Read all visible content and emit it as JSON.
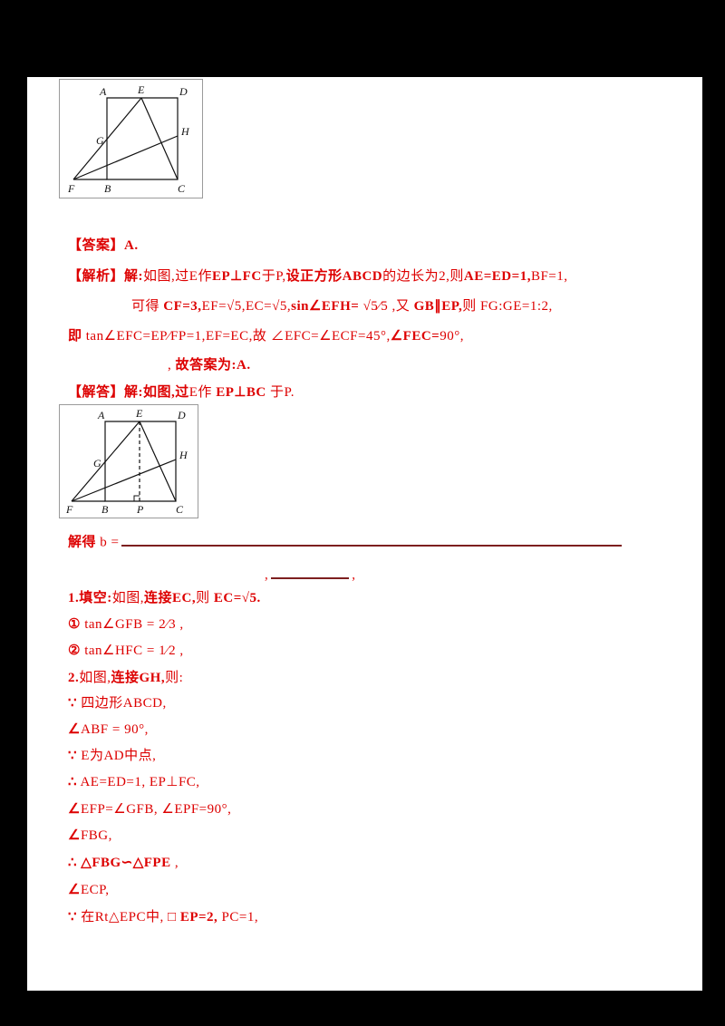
{
  "page": {
    "background": "#ffffff",
    "surround": "#000000"
  },
  "colors": {
    "text_red": "#dd0000",
    "rule_maroon": "#7d1f1f",
    "figure_line": "#111111"
  },
  "fig1": {
    "A": "A",
    "B": "B",
    "C": "C",
    "D": "D",
    "E": "E",
    "F": "F",
    "G": "G",
    "H": "H"
  },
  "fig2": {
    "A": "A",
    "B": "B",
    "C": "C",
    "D": "D",
    "E": "E",
    "F": "F",
    "G": "G",
    "H": "H",
    "P": "P"
  },
  "lines": {
    "answer": [
      {
        "t": "【答案】",
        "b": true
      },
      {
        "t": "A.",
        "b": true
      }
    ],
    "analysis1": [
      {
        "t": "【解析】解:",
        "b": true
      },
      {
        "t": "如图,过",
        "b": false
      },
      {
        "t": "E",
        "b": false
      },
      {
        "t": "作",
        "b": false
      },
      {
        "t": "EP⊥FC",
        "b": true
      },
      {
        "t": "于",
        "b": false
      },
      {
        "t": "P,",
        "b": false
      },
      {
        "t": "设正方形ABCD",
        "b": true
      },
      {
        "t": "的边长为2,则",
        "b": false
      },
      {
        "t": "AE=ED=1,",
        "b": true
      },
      {
        "t": "BF=1,",
        "b": false
      }
    ],
    "analysis2": [
      {
        "t": "可得 ",
        "b": false
      },
      {
        "t": "CF=3,",
        "b": true
      },
      {
        "t": "EF=√5,EC=√5,",
        "b": false
      },
      {
        "t": "sin∠EFH=",
        "b": true
      },
      {
        "t": " √5⁄5 ,又 ",
        "b": false
      },
      {
        "t": "GB∥EP,",
        "b": true
      },
      {
        "t": "则 ",
        "b": false
      },
      {
        "t": "FG:GE=1:2,",
        "b": false
      }
    ],
    "analysis3": [
      {
        "t": "即",
        "b": true
      },
      {
        "t": " tan∠EFC=",
        "b": false
      },
      {
        "t": "EP⁄FP",
        "b": false
      },
      {
        "t": "=1,",
        "b": false
      },
      {
        "t": "EF=EC,",
        "b": false
      },
      {
        "t": "故 ",
        "b": false
      },
      {
        "t": "∠EFC=∠ECF=45°,",
        "b": false
      },
      {
        "t": "∠FEC=",
        "b": true
      },
      {
        "t": "90°,",
        "b": false
      }
    ],
    "analysis4": [
      {
        "t": ", ",
        "b": false
      },
      {
        "t": "故答案为:A.",
        "b": true
      }
    ],
    "method2": [
      {
        "t": "【解答】解:如图,过",
        "b": true
      },
      {
        "t": "E",
        "b": false
      },
      {
        "t": "作 ",
        "b": false
      },
      {
        "t": "EP⊥BC",
        "b": true
      },
      {
        "t": " 于P.",
        "b": false
      }
    ],
    "blank1_pre": [
      {
        "t": "解得",
        "b": true
      },
      {
        "t": " b =",
        "b": false
      }
    ],
    "blank2_pre": [
      {
        "t": ",",
        "b": false
      }
    ],
    "blank2_post": [
      {
        "t": ",",
        "b": false
      }
    ],
    "header": [
      {
        "t": "1.填空:",
        "b": true
      },
      {
        "t": "如图,",
        "b": false
      },
      {
        "t": "连接EC,",
        "b": true
      },
      {
        "t": "则 ",
        "b": false
      },
      {
        "t": "EC=√5.",
        "b": true
      }
    ],
    "step1": [
      {
        "t": "①",
        "b": true
      },
      {
        "t": " tan∠GFB = ",
        "b": false
      },
      {
        "t": "2⁄3",
        "b": false
      },
      {
        "t": " ,",
        "b": false
      }
    ],
    "step2": [
      {
        "t": "②",
        "b": true
      },
      {
        "t": " tan∠HFC = ",
        "b": false
      },
      {
        "t": "1⁄2",
        "b": false
      },
      {
        "t": " ,",
        "b": false
      }
    ],
    "comment": [
      {
        "t": "2.",
        "b": true
      },
      {
        "t": "如图,",
        "b": false
      },
      {
        "t": "连接GH,",
        "b": true
      },
      {
        "t": "则:",
        "b": false
      }
    ],
    "s1": [
      {
        "t": "∵",
        "b": true
      },
      {
        "t": " 四边形ABCD,",
        "b": false
      }
    ],
    "s2": [
      {
        "t": "∠",
        "b": true
      },
      {
        "t": "ABF = 90°,",
        "b": false
      }
    ],
    "s3": [
      {
        "t": "∵",
        "b": true
      },
      {
        "t": " E为AD中点,",
        "b": false
      }
    ],
    "s4": [
      {
        "t": "∴",
        "b": true
      },
      {
        "t": " AE=ED=1, EP⊥FC,",
        "b": false
      }
    ],
    "s5": [
      {
        "t": "∠",
        "b": true
      },
      {
        "t": "EFP=∠GFB, ∠EPF=90°,",
        "b": false
      }
    ],
    "s6": [
      {
        "t": "∠",
        "b": true
      },
      {
        "t": "FBG,",
        "b": false
      }
    ],
    "s7": [
      {
        "t": "∴",
        "b": true
      },
      {
        "t": " ",
        "b": false
      },
      {
        "t": "△FBG∽△FPE",
        "b": true
      },
      {
        "t": " ,",
        "b": false
      }
    ],
    "s8": [
      {
        "t": "∠",
        "b": true
      },
      {
        "t": "ECP,",
        "b": false
      }
    ],
    "s9": [
      {
        "t": "∵",
        "b": true
      },
      {
        "t": " 在Rt△EPC中, □ ",
        "b": false
      },
      {
        "t": "EP=2,",
        "b": true
      },
      {
        "t": " PC=1,",
        "b": false
      }
    ]
  }
}
